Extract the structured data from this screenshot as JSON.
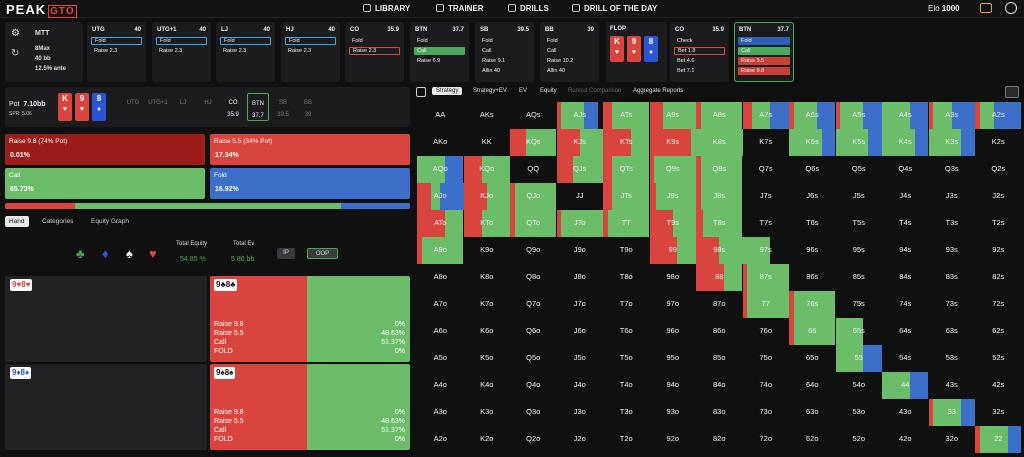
{
  "brand": {
    "name": "PEAK",
    "accent": "GTO"
  },
  "nav": [
    "LIBRARY",
    "TRAINER",
    "DRILLS",
    "DRILL OF THE DAY"
  ],
  "elo": {
    "label": "Elo",
    "value": "1000"
  },
  "info": {
    "title": "MTT",
    "players": "8Max",
    "stack": "40 bb",
    "ante": "12.5% ante"
  },
  "players": [
    {
      "name": "UTG",
      "stack": "40",
      "actions": [
        {
          "t": "Fold",
          "c": "h"
        },
        {
          "t": "Raise 2.3",
          "c": "n"
        }
      ]
    },
    {
      "name": "UTG+1",
      "stack": "40",
      "actions": [
        {
          "t": "Fold",
          "c": "h"
        },
        {
          "t": "Raise 2.3",
          "c": "n"
        }
      ]
    },
    {
      "name": "LJ",
      "stack": "40",
      "actions": [
        {
          "t": "Fold",
          "c": "h"
        },
        {
          "t": "Raise 2.3",
          "c": "n"
        }
      ]
    },
    {
      "name": "HJ",
      "stack": "40",
      "actions": [
        {
          "t": "Fold",
          "c": "h"
        },
        {
          "t": "Raise 2.3",
          "c": "n"
        }
      ]
    },
    {
      "name": "CO",
      "stack": "35.9",
      "actions": [
        {
          "t": "Fold",
          "c": "n"
        },
        {
          "t": "Raise 2.3",
          "c": "hr"
        }
      ]
    },
    {
      "name": "BTN",
      "stack": "37.7",
      "actions": [
        {
          "t": "Fold",
          "c": "n"
        },
        {
          "t": "Call",
          "c": "green"
        },
        {
          "t": "Raise 6.9",
          "c": "n"
        }
      ]
    },
    {
      "name": "SB",
      "stack": "39.5",
      "actions": [
        {
          "t": "Fold",
          "c": "n"
        },
        {
          "t": "Call",
          "c": "n"
        },
        {
          "t": "Raise 9.1",
          "c": "n"
        },
        {
          "t": "Allin 40",
          "c": "n"
        }
      ]
    },
    {
      "name": "BB",
      "stack": "39",
      "actions": [
        {
          "t": "Fold",
          "c": "n"
        },
        {
          "t": "Call",
          "c": "n"
        },
        {
          "t": "Raise 10.2",
          "c": "n"
        },
        {
          "t": "Allin 40",
          "c": "n"
        }
      ]
    }
  ],
  "flop": {
    "label": "FLOP",
    "cards": [
      {
        "r": "K",
        "s": "♥",
        "c": "h"
      },
      {
        "r": "9",
        "s": "♥",
        "c": "h"
      },
      {
        "r": "8",
        "s": "♦",
        "c": "d"
      }
    ]
  },
  "postflop": [
    {
      "name": "CO",
      "stack": "35.9",
      "actions": [
        {
          "t": "Check",
          "c": "n"
        },
        {
          "t": "Bet 1.8",
          "c": "hr"
        },
        {
          "t": "Bet 4.6",
          "c": "n"
        },
        {
          "t": "Bet 7.1",
          "c": "n"
        }
      ]
    },
    {
      "name": "BTN",
      "stack": "37.7",
      "actions": [
        {
          "t": "Fold",
          "c": "blue"
        },
        {
          "t": "Call",
          "c": "green"
        },
        {
          "t": "Raise 5.5",
          "c": "red"
        },
        {
          "t": "Raise 9.8",
          "c": "red"
        }
      ]
    }
  ],
  "pot": {
    "label": "Pot",
    "value": "7.10bb",
    "spr_label": "SPR:",
    "spr": "5.06",
    "tabs": [
      {
        "n": "UTG",
        "v": ""
      },
      {
        "n": "UTG+1",
        "v": ""
      },
      {
        "n": "LJ",
        "v": ""
      },
      {
        "n": "HJ",
        "v": ""
      },
      {
        "n": "CO",
        "v": "35.9"
      },
      {
        "n": "BTN",
        "v": "37.7"
      },
      {
        "n": "SB",
        "v": "39.5"
      },
      {
        "n": "BB",
        "v": "39"
      }
    ]
  },
  "strategy": [
    {
      "label": "Raise 9.8 (74% Pot)",
      "value": "0.01%",
      "color": "#9b1c19"
    },
    {
      "label": "Raise 5.5 (34% Pot)",
      "value": "17.34%",
      "color": "#d9453e"
    },
    {
      "label": "Call",
      "value": "65.73%",
      "color": "#6cbd6a"
    },
    {
      "label": "Fold",
      "value": "16.92%",
      "color": "#3b6fc9"
    }
  ],
  "strategy_bar": [
    0.1734,
    0.6573,
    0.1692
  ],
  "hand_tabs": [
    "Hand",
    "Categories",
    "Equity Graph"
  ],
  "suits": [
    "♣",
    "♦",
    "♠",
    "♥"
  ],
  "equity": {
    "eq_label": "Total Equity",
    "eq_value": "54.85 %",
    "ev_label": "Total Ev",
    "ev_value": "5.86 bb",
    "ip": "IP",
    "oop": "OOP"
  },
  "hands": [
    {
      "left": [
        "9",
        "♥",
        "8",
        "♥"
      ],
      "lc": [
        "r",
        "r"
      ],
      "right": [
        "9",
        "♣",
        "8",
        "♣"
      ],
      "rc": [
        "g",
        "g"
      ],
      "rows": [
        "Raise 9.8",
        "Raise 5.5",
        "Call",
        "FOLD"
      ],
      "pcts": [
        "0%",
        "48.63%",
        "51.37%",
        "0%"
      ]
    },
    {
      "left": [
        "9",
        "♦",
        "8",
        "♦"
      ],
      "lc": [
        "b",
        "b"
      ],
      "right": [
        "9",
        "♠",
        "8",
        "♠"
      ],
      "rc": [
        "k",
        "k"
      ],
      "rows": [
        "Raise 9.8",
        "Raise 5.5",
        "Call",
        "FOLD"
      ],
      "pcts": [
        "0%",
        "48.63%",
        "51.37%",
        "0%"
      ]
    }
  ],
  "right_tabs": [
    "Strategy",
    "Strategy+EV",
    "EV",
    "Equity",
    "Runout Comparison",
    "Aggregate Reports"
  ],
  "ranks": [
    "A",
    "K",
    "Q",
    "J",
    "T",
    "9",
    "8",
    "7",
    "6",
    "5",
    "4",
    "3",
    "2"
  ],
  "colors": {
    "red": "#d9453e",
    "green": "#6cbd6a",
    "blue": "#3b6fc9",
    "dark": "#101011"
  },
  "range": {
    "AJs": [
      0,
      0.1,
      0.5,
      0.3,
      0.1
    ],
    "ATs": [
      0,
      0.2,
      0.8,
      0,
      0
    ],
    "A9s": [
      0,
      0.3,
      0.7,
      0,
      0
    ],
    "A8s": [
      0,
      0.1,
      0.9,
      0,
      0
    ],
    "A7s": [
      0,
      0.2,
      0.4,
      0.4,
      0
    ],
    "A6s": [
      0,
      0.1,
      0.5,
      0.4,
      0
    ],
    "A5s": [
      0,
      0.1,
      0.5,
      0.4,
      0
    ],
    "A4s": [
      0,
      0,
      0.6,
      0.4,
      0
    ],
    "A3s": [
      0,
      0.1,
      0.4,
      0.5,
      0
    ],
    "A2s": [
      0,
      0.1,
      0.3,
      0.6,
      0
    ],
    "AKo": [
      0,
      0,
      0,
      0,
      1
    ],
    "KQs": [
      0,
      0.35,
      0.65,
      0,
      0
    ],
    "KJs": [
      0,
      0.5,
      0.5,
      0,
      0
    ],
    "KTs": [
      0,
      0.6,
      0.4,
      0,
      0
    ],
    "K9s": [
      0,
      0.9,
      0.1,
      0,
      0
    ],
    "K8s": [
      0,
      0,
      1,
      0,
      0
    ],
    "K7s": [
      0,
      0,
      0,
      0,
      1
    ],
    "K6s": [
      0,
      0,
      0.7,
      0.3,
      0
    ],
    "K5s": [
      0,
      0,
      0.7,
      0.3,
      0
    ],
    "K4s": [
      0,
      0,
      0.7,
      0.3,
      0
    ],
    "K3s": [
      0,
      0,
      0.7,
      0.3,
      0
    ],
    "AQo": [
      0,
      0,
      0.6,
      0.4,
      0
    ],
    "KQo": [
      0,
      0.4,
      0.6,
      0,
      0
    ],
    "QJs": [
      0,
      0.35,
      0.65,
      0,
      0
    ],
    "QTs": [
      0,
      0.2,
      0.8,
      0,
      0
    ],
    "Q9s": [
      0,
      0.1,
      0.9,
      0,
      0
    ],
    "Q8s": [
      0,
      0.1,
      0.9,
      0,
      0
    ],
    "AJo": [
      0,
      0.3,
      0.2,
      0.5,
      0
    ],
    "KJo": [
      0,
      0.5,
      0.5,
      0,
      0
    ],
    "QJo": [
      0,
      0.1,
      0.9,
      0,
      0
    ],
    "JTs": [
      0,
      0.2,
      0.8,
      0,
      0
    ],
    "J9s": [
      0,
      0.15,
      0.85,
      0,
      0
    ],
    "J8s": [
      0,
      0.1,
      0.9,
      0,
      0
    ],
    "ATo": [
      0,
      0.6,
      0.4,
      0,
      0
    ],
    "KTo": [
      0,
      0.4,
      0.6,
      0,
      0
    ],
    "QTo": [
      0,
      0.1,
      0.9,
      0,
      0
    ],
    "JTo": [
      0,
      0.1,
      0.9,
      0,
      0
    ],
    "TT": [
      0,
      0.1,
      0.9,
      0,
      0
    ],
    "T9s": [
      0,
      0.5,
      0.5,
      0,
      0
    ],
    "T8s": [
      0,
      0.15,
      0.85,
      0,
      0
    ],
    "A9o": [
      0,
      0.1,
      0.9,
      0,
      0
    ],
    "99": [
      0,
      0.6,
      0.4,
      0,
      0
    ],
    "98s": [
      0,
      0.5,
      0.5,
      0,
      0
    ],
    "97s": [
      0,
      0,
      0.6,
      0,
      0.4
    ],
    "88": [
      0,
      0.6,
      0.4,
      0,
      0
    ],
    "87s": [
      0,
      0.1,
      0.9,
      0,
      0
    ],
    "77": [
      0,
      0.1,
      0.9,
      0,
      0
    ],
    "76s": [
      0,
      0.1,
      0.9,
      0,
      0
    ],
    "66": [
      0,
      0.1,
      0.9,
      0,
      0
    ],
    "65s": [
      0,
      0,
      0.6,
      0,
      0.4
    ],
    "55": [
      0,
      0,
      0.6,
      0.4,
      0
    ],
    "54s": [
      0,
      0,
      0,
      0,
      1
    ],
    "44": [
      0,
      0,
      0.6,
      0.4,
      0
    ],
    "33": [
      0,
      0.1,
      0.6,
      0.3,
      0
    ],
    "22": [
      0,
      0.1,
      0.6,
      0.3,
      0
    ]
  }
}
